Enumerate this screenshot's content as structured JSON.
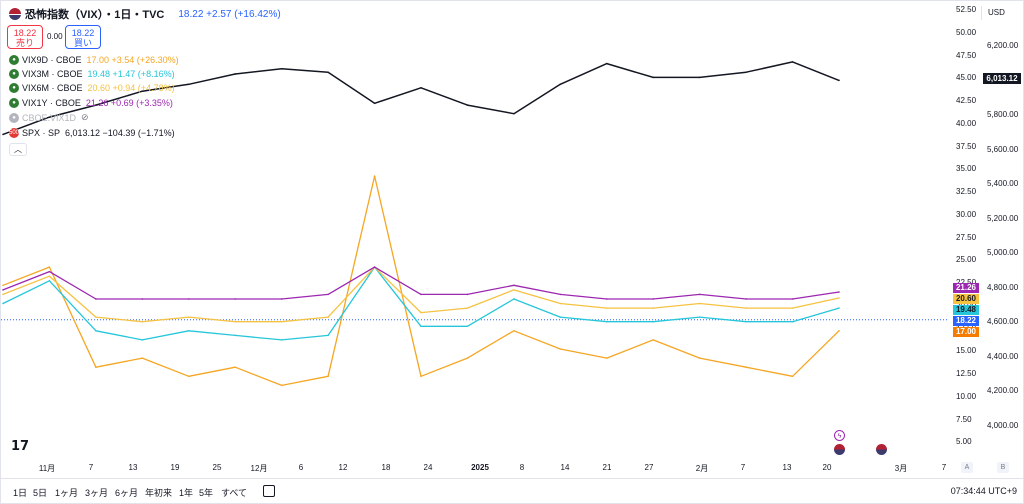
{
  "header": {
    "title": "恐怖指数（VIX）・1日・TVC",
    "price": "18.22  +2.57 (+16.42%)",
    "sell_price": "18.22",
    "sell_label": "売り",
    "spread": "0.00",
    "buy_price": "18.22",
    "buy_label": "買い"
  },
  "legend": [
    {
      "symbol": "VIX9D · CBOE",
      "value": "17.00  +3.54 (+26.30%)",
      "color": "#f5a623"
    },
    {
      "symbol": "VIX3M · CBOE",
      "value": "19.48  +1.47 (+8.16%)",
      "color": "#26c6da"
    },
    {
      "symbol": "VIX6M · CBOE",
      "value": "20.60  +0.94 (+4.78%)",
      "color": "#f5c242"
    },
    {
      "symbol": "VIX1Y · CBOE",
      "value": "21.26  +0.69 (+3.35%)",
      "color": "#9c27b0"
    },
    {
      "symbol": "CBOE:VIX1D",
      "value": "",
      "color": "#b2b5be"
    },
    {
      "symbol": "SPX · SP",
      "value": "6,013.12  −104.39 (−1.71%)",
      "color": "#131722"
    }
  ],
  "legend_collapse": "︿",
  "currency": "USD",
  "y_axis_left": [
    "52.50",
    "50.00",
    "47.50",
    "45.00",
    "42.50",
    "40.00",
    "37.50",
    "35.00",
    "32.50",
    "30.00",
    "27.50",
    "25.00",
    "22.50",
    "20.00",
    "17.50",
    "15.00",
    "12.50",
    "10.00",
    "7.50",
    "5.00"
  ],
  "y_axis_right": [
    "6,200.00",
    "6,000.00",
    "5,800.00",
    "5,600.00",
    "5,400.00",
    "5,200.00",
    "5,000.00",
    "4,800.00",
    "4,600.00",
    "4,400.00",
    "4,200.00",
    "4,000.00"
  ],
  "badges": {
    "vix1y": "21.26",
    "vix6m": "20.60",
    "vix3m": "19.48",
    "vix": "18.22",
    "vix9d": "17.00",
    "spx": "6,013.12"
  },
  "x_axis": [
    "11月",
    "7",
    "13",
    "19",
    "25",
    "12月",
    "6",
    "12",
    "18",
    "24",
    "2025",
    "8",
    "14",
    "21",
    "27",
    "2月",
    "7",
    "13",
    "20",
    "3月",
    "7"
  ],
  "axis_buttons": {
    "a": "A",
    "b": "B"
  },
  "ranges": [
    "1日",
    "5日",
    "1ヶ月",
    "3ヶ月",
    "6ヶ月",
    "年初来",
    "1年",
    "5年",
    "すべて"
  ],
  "time": "07:34:44 UTC+9",
  "colors": {
    "vix": "#2962ff",
    "vix9d": "#f5a623",
    "vix3m": "#26c6da",
    "vix6m": "#f5c242",
    "vix1y": "#9c27b0",
    "spx": "#131722"
  },
  "chart_data": {
    "type": "line",
    "x": [
      "11月",
      "7",
      "13",
      "19",
      "25",
      "12月",
      "6",
      "12",
      "18",
      "24",
      "2025",
      "8",
      "14",
      "21",
      "27",
      "2月",
      "7",
      "13",
      "20"
    ],
    "series": [
      {
        "name": "VIX9D · CBOE",
        "values": [
          22,
          24,
          13,
          14,
          12,
          13,
          11,
          12,
          34,
          12,
          14,
          17,
          15,
          14,
          16,
          14,
          13,
          12,
          17
        ]
      },
      {
        "name": "VIX3M · CBOE",
        "values": [
          20,
          22.5,
          17,
          16,
          17,
          16.5,
          16,
          16.5,
          24,
          17.5,
          17.5,
          20.5,
          18.5,
          18,
          18,
          18.5,
          18,
          18,
          19.5
        ]
      },
      {
        "name": "VIX6M · CBOE",
        "values": [
          21,
          23,
          18.5,
          18,
          18.5,
          18,
          18,
          18.5,
          24,
          19,
          19.5,
          21.5,
          20,
          19.5,
          19.5,
          20,
          19.5,
          19.5,
          20.6
        ]
      },
      {
        "name": "VIX1Y · CBOE",
        "values": [
          21.5,
          23.5,
          20.5,
          20.5,
          20.5,
          20.5,
          20.5,
          21,
          24,
          21,
          21,
          22,
          21,
          20.5,
          20.5,
          21,
          20.5,
          20.5,
          21.26
        ]
      },
      {
        "name": "SPX · SP",
        "values": [
          5700,
          5800,
          5870,
          5950,
          5990,
          6050,
          6080,
          6060,
          5880,
          5970,
          5870,
          5820,
          5990,
          6110,
          6030,
          6030,
          6060,
          6120,
          6013
        ]
      }
    ]
  }
}
